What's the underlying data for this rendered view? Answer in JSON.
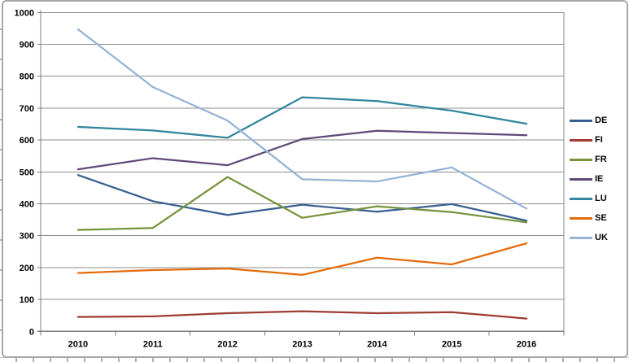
{
  "chart_data": {
    "type": "line",
    "title": "",
    "xlabel": "",
    "ylabel": "",
    "categories": [
      "2010",
      "2011",
      "2012",
      "2013",
      "2014",
      "2015",
      "2016"
    ],
    "series": [
      {
        "name": "DE",
        "color": "#376092",
        "values": [
          490,
          408,
          365,
          397,
          375,
          399,
          347
        ]
      },
      {
        "name": "FI",
        "color": "#9E3B33",
        "values": [
          45,
          47,
          57,
          63,
          57,
          60,
          40
        ]
      },
      {
        "name": "FR",
        "color": "#77933C",
        "values": [
          318,
          324,
          484,
          356,
          392,
          374,
          342
        ]
      },
      {
        "name": "IE",
        "color": "#5F497A",
        "values": [
          508,
          543,
          521,
          603,
          629,
          622,
          615
        ]
      },
      {
        "name": "LU",
        "color": "#31859C",
        "values": [
          641,
          630,
          607,
          734,
          722,
          692,
          651
        ]
      },
      {
        "name": "SE",
        "color": "#E46C0A",
        "values": [
          183,
          192,
          197,
          177,
          231,
          210,
          276
        ]
      },
      {
        "name": "UK",
        "color": "#95B3D7",
        "values": [
          947,
          766,
          661,
          477,
          470,
          514,
          385
        ]
      }
    ],
    "y_ticks": [
      0,
      100,
      200,
      300,
      400,
      500,
      600,
      700,
      800,
      900,
      1000
    ],
    "ylim": [
      0,
      1000
    ],
    "grid": true,
    "legend_position": "right",
    "colors": {
      "gridline": "#8e8e8e",
      "axis": "#7f7f7f",
      "frame_border": "#a7a7a7"
    }
  }
}
